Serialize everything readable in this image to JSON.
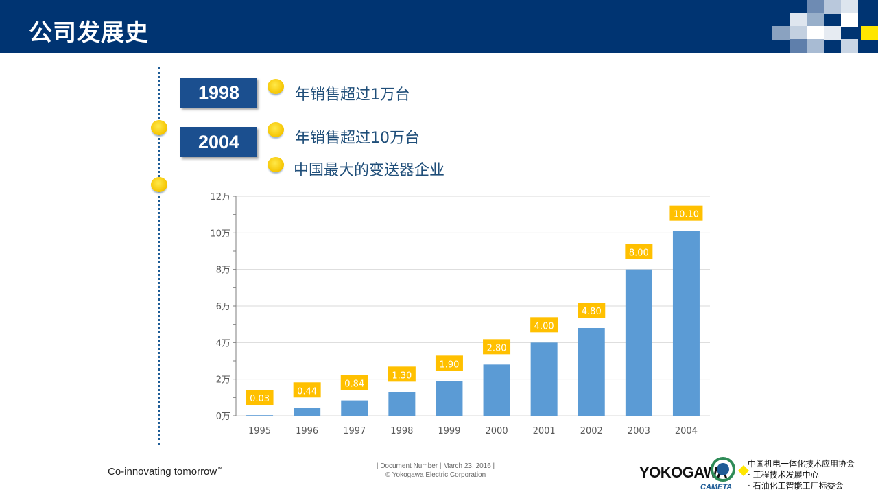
{
  "header": {
    "title": "公司发展史"
  },
  "timeline": [
    {
      "year": "1998",
      "items": [
        "年销售超过1万台"
      ]
    },
    {
      "year": "2004",
      "items": [
        "年销售超过10万台",
        "中国最大的变送器企业"
      ]
    }
  ],
  "chart_data": {
    "type": "bar",
    "categories": [
      "1995",
      "1996",
      "1997",
      "1998",
      "1999",
      "2000",
      "2001",
      "2002",
      "2003",
      "2004"
    ],
    "values": [
      0.03,
      0.44,
      0.84,
      1.3,
      1.9,
      2.8,
      4.0,
      4.8,
      8.0,
      10.1
    ],
    "data_labels": [
      "0.03",
      "0.44",
      "0.84",
      "1.30",
      "1.90",
      "2.80",
      "4.00",
      "4.80",
      "8.00",
      "10.10"
    ],
    "y_ticks": [
      "0万",
      "2万",
      "4万",
      "6万",
      "8万",
      "10万",
      "12万"
    ],
    "ylim": [
      0,
      12
    ],
    "grid": true,
    "bar_color": "#5b9bd5",
    "label_bg": "#ffc000"
  },
  "footer": {
    "tagline": "Co-innovating tomorrow",
    "trademark": "™",
    "doc_line1": "| Document Number | March 23, 2016 |",
    "doc_line2": "© Yokogawa Electric Corporation",
    "logo": "YOKOGAWA",
    "cameta": "CAMETA",
    "org_lines": [
      "中国机电一体化技术应用协会",
      "· 工程技术发展中心",
      "· 石油化工智能工厂标委会"
    ]
  },
  "colors": {
    "header_bg": "#003472",
    "year_box": "#1b4f8f",
    "accent_yellow": "#ffc000",
    "text_blue": "#1f4e79"
  }
}
